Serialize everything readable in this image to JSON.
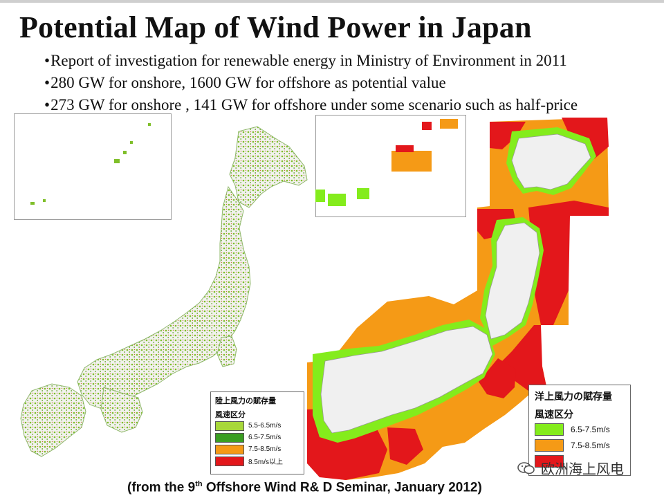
{
  "slide": {
    "title": "Potential Map of Wind Power in Japan",
    "bullets": [
      "Report of  investigation for renewable energy in Ministry of Environment in 2011",
      "280 GW for onshore, 1600 GW for offshore as potential value",
      "273 GW for onshore , 141 GW for offshore under some scenario such as half-price"
    ],
    "source_before": "(from the 9",
    "source_sup": "th",
    "source_after": " Offshore Wind R& D Seminar, January 2012)",
    "watermark": "欧洲海上风电"
  },
  "maps": {
    "onshore": {
      "icon": "japan-onshore-wind-map",
      "land_color": "#f2f2ee",
      "wind_color": "#7fbf2a"
    },
    "offshore": {
      "icon": "japan-offshore-wind-map",
      "land_color": "#f0f0f0"
    }
  },
  "legend_onshore": {
    "title": "陸上風力の賦存量",
    "subtitle": "風速区分",
    "items": [
      {
        "label": "5.5-6.5m/s",
        "color": "#a8d83a"
      },
      {
        "label": "6.5-7.5m/s",
        "color": "#3a9e22"
      },
      {
        "label": "7.5-8.5m/s",
        "color": "#f59a16"
      },
      {
        "label": "8.5m/s以上",
        "color": "#e3171b"
      }
    ]
  },
  "legend_offshore": {
    "title": "洋上風力の賦存量",
    "subtitle": "風速区分",
    "items": [
      {
        "label": "6.5-7.5m/s",
        "color": "#84ec1c"
      },
      {
        "label": "7.5-8.5m/s",
        "color": "#f59a16"
      },
      {
        "label": "",
        "color": "#e3171b"
      }
    ]
  }
}
